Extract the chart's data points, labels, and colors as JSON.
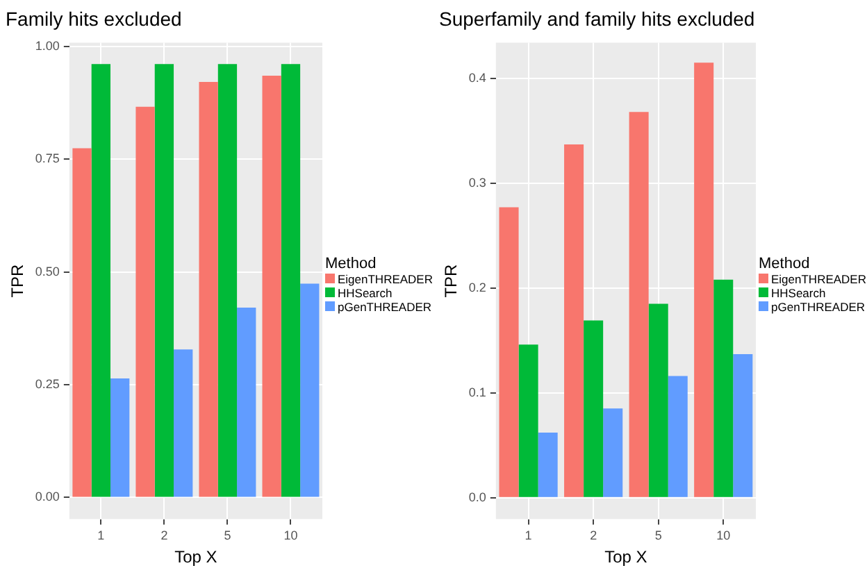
{
  "chart_data": [
    {
      "type": "bar",
      "title": "Family hits excluded",
      "xlabel": "Top X",
      "ylabel": "TPR",
      "legend_title": "Method",
      "categories": [
        "1",
        "2",
        "5",
        "10"
      ],
      "series": [
        {
          "name": "EigenTHREADER",
          "color": "#f8766d",
          "values": [
            0.774,
            0.866,
            0.921,
            0.935
          ]
        },
        {
          "name": "HHSearch",
          "color": "#00ba38",
          "values": [
            0.961,
            0.961,
            0.961,
            0.961
          ]
        },
        {
          "name": "pGenTHREADER",
          "color": "#619cff",
          "values": [
            0.264,
            0.328,
            0.421,
            0.474
          ]
        }
      ],
      "ylim": [
        -0.048,
        1.008
      ],
      "yticks": [
        {
          "value": 0,
          "label": "0.00"
        },
        {
          "value": 0.25,
          "label": "0.25"
        },
        {
          "value": 0.5,
          "label": "0.50"
        },
        {
          "value": 0.75,
          "label": "0.75"
        },
        {
          "value": 1,
          "label": "1.00"
        }
      ],
      "grid": true,
      "legend": "right"
    },
    {
      "type": "bar",
      "title": "Superfamily and family hits excluded",
      "xlabel": "Top X",
      "ylabel": "TPR",
      "legend_title": "Method",
      "categories": [
        "1",
        "2",
        "5",
        "10"
      ],
      "series": [
        {
          "name": "EigenTHREADER",
          "color": "#f8766d",
          "values": [
            0.277,
            0.337,
            0.368,
            0.415
          ]
        },
        {
          "name": "HHSearch",
          "color": "#00ba38",
          "values": [
            0.146,
            0.169,
            0.185,
            0.208
          ]
        },
        {
          "name": "pGenTHREADER",
          "color": "#619cff",
          "values": [
            0.062,
            0.085,
            0.116,
            0.137
          ]
        }
      ],
      "ylim": [
        -0.0205,
        0.434
      ],
      "yticks": [
        {
          "value": 0,
          "label": "0.0"
        },
        {
          "value": 0.1,
          "label": "0.1"
        },
        {
          "value": 0.2,
          "label": "0.2"
        },
        {
          "value": 0.3,
          "label": "0.3"
        },
        {
          "value": 0.4,
          "label": "0.4"
        }
      ],
      "grid": true,
      "legend": "right"
    }
  ]
}
